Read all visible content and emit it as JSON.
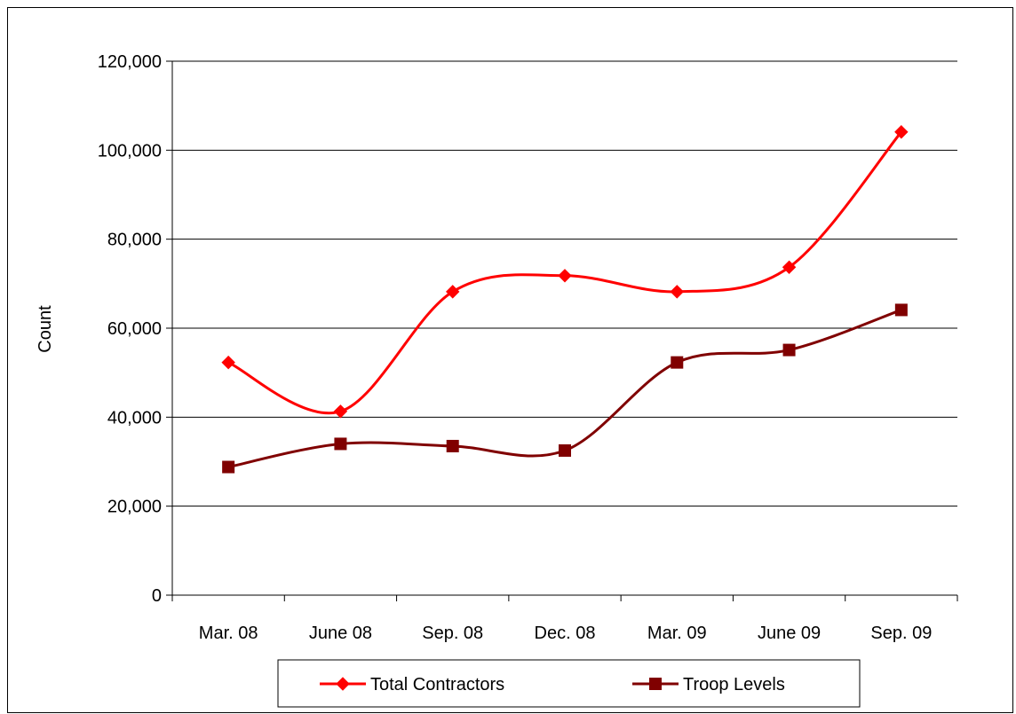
{
  "chart_data": {
    "type": "line",
    "title": "",
    "xlabel": "",
    "ylabel": "Count",
    "categories": [
      "Mar. 08",
      "June 08",
      "Sep. 08",
      "Dec. 08",
      "Mar. 09",
      "June 09",
      "Sep. 09"
    ],
    "ylim": [
      0,
      120000
    ],
    "yticks": [
      0,
      20000,
      40000,
      60000,
      80000,
      100000,
      120000
    ],
    "ytick_labels": [
      "0",
      "20,000",
      "40,000",
      "60,000",
      "80,000",
      "100,000",
      "120,000"
    ],
    "grid": "horizontal",
    "smooth": true,
    "legend_position": "bottom",
    "series": [
      {
        "name": "Total Contractors",
        "values": [
          52300,
          41300,
          68200,
          71800,
          68200,
          73700,
          104100
        ],
        "color": "#ff0000",
        "marker": "diamond"
      },
      {
        "name": "Troop Levels",
        "values": [
          28800,
          34000,
          33500,
          32500,
          52300,
          55100,
          64100
        ],
        "color": "#800000",
        "marker": "square"
      }
    ]
  }
}
